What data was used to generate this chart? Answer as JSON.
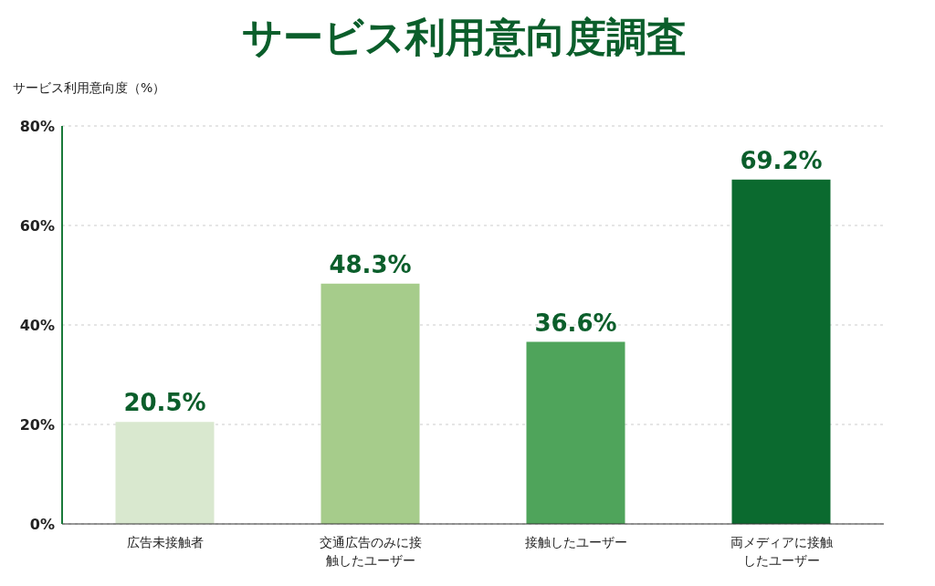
{
  "chart_data": {
    "type": "bar",
    "title": "サービス利用意向度調査",
    "ylabel": "サービス利用意向度（%）",
    "categories": [
      "広告未接触者",
      "交通広告のみに接触したユーザー",
      "接触したユーザー",
      "両メディアに接触したユーザー"
    ],
    "values": [
      20.5,
      48.3,
      36.6,
      69.2
    ],
    "colors": [
      "#d9e8cf",
      "#a6cc8b",
      "#4fa45b",
      "#0b6a2f"
    ],
    "value_labels": [
      "20.5%",
      "48.3%",
      "36.6%",
      "69.2%"
    ],
    "ylim": [
      0,
      80
    ],
    "yticks": [
      {
        "value": 0,
        "label": "0%"
      },
      {
        "value": 20,
        "label": "20%"
      },
      {
        "value": 40,
        "label": "40%"
      },
      {
        "value": 60,
        "label": "60%"
      },
      {
        "value": 80,
        "label": "80%"
      }
    ],
    "grid": "y"
  }
}
